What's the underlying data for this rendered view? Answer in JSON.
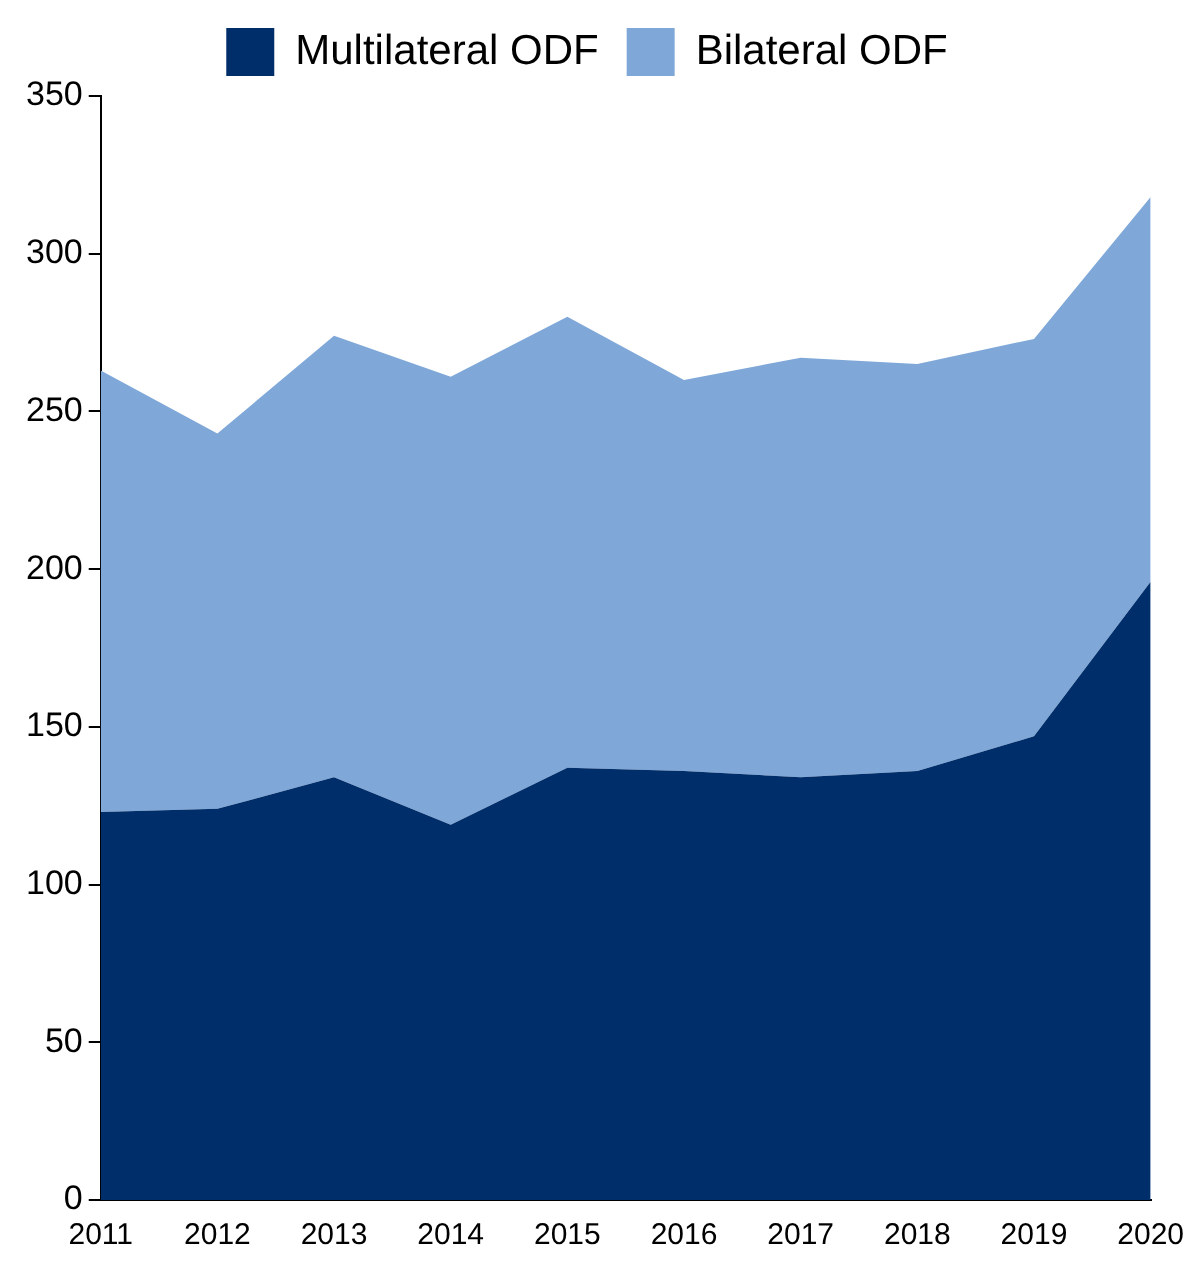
{
  "chart_data": {
    "type": "area",
    "stacked": true,
    "categories": [
      "2011",
      "2012",
      "2013",
      "2014",
      "2015",
      "2016",
      "2017",
      "2018",
      "2019",
      "2020"
    ],
    "series": [
      {
        "name": "Multilateral ODF",
        "color": "#002e6a",
        "values": [
          123,
          124,
          134,
          119,
          137,
          136,
          134,
          136,
          147,
          196
        ]
      },
      {
        "name": "Bilateral ODF",
        "color": "#7fa8d9",
        "values": [
          140,
          119,
          140,
          142,
          143,
          124,
          133,
          129,
          126,
          122
        ]
      }
    ],
    "ylim": [
      0,
      350
    ],
    "yticks": [
      0,
      50,
      100,
      150,
      200,
      250,
      300,
      350
    ],
    "grid": false,
    "legend": "top"
  }
}
